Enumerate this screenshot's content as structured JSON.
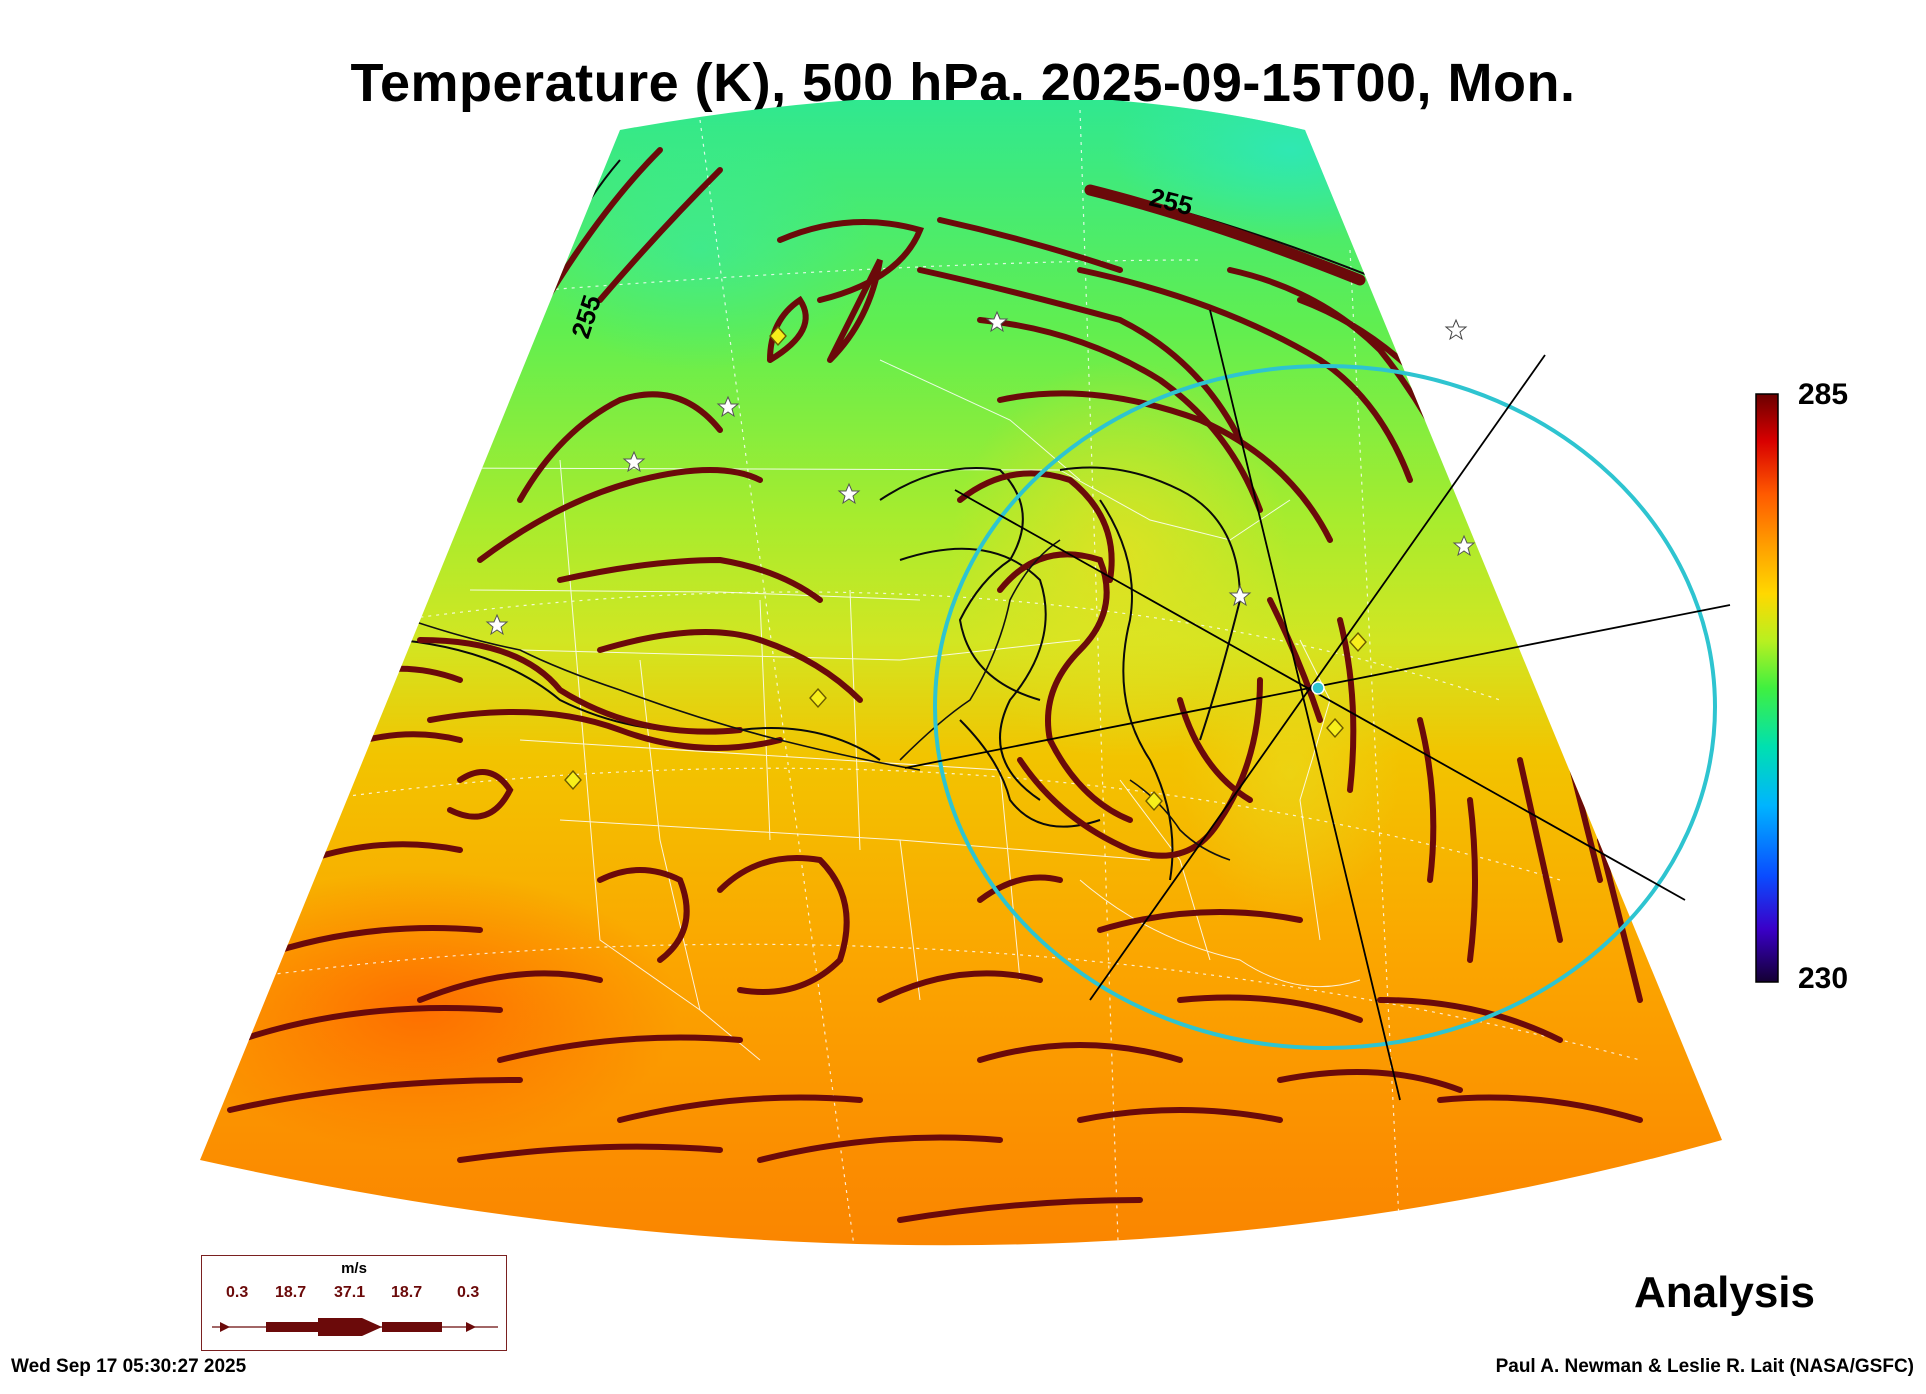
{
  "title": "Temperature (K), 500 hPa, 2025-09-15T00, Mon.",
  "colorbar": {
    "max_label": "285",
    "min_label": "230",
    "colors": [
      "#140033",
      "#3a00c8",
      "#0a4cff",
      "#00b4ff",
      "#00e0b0",
      "#40f040",
      "#b8f020",
      "#ffd800",
      "#ffa000",
      "#ff5a00",
      "#d80000",
      "#6b0000"
    ]
  },
  "contour_labels": [
    "255",
    "255"
  ],
  "legend": {
    "unit": "m/s",
    "values": [
      "0.3",
      "18.7",
      "37.1",
      "18.7",
      "0.3"
    ]
  },
  "analysis_label": "Analysis",
  "timestamp": "Wed Sep 17 05:30:27 2025",
  "credit": "Paul A. Newman & Leslie R. Lait (NASA/GSFC)",
  "colors": {
    "streamline": "#6b0a0a",
    "cursor_ring": "#2ec4d0",
    "contour": "#0a0a0a"
  }
}
